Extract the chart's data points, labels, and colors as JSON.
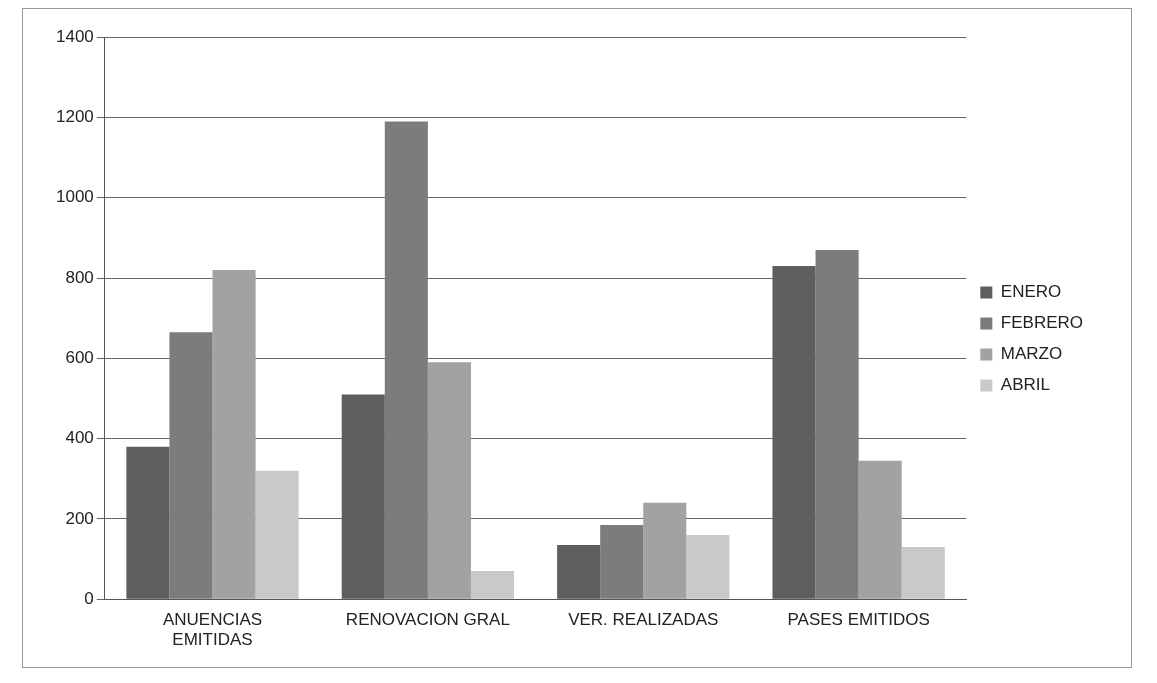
{
  "chart_data": {
    "type": "bar",
    "categories": [
      "ANUENCIAS EMITIDAS",
      "RENOVACION GRAL",
      "VER. REALIZADAS",
      "PASES EMITIDOS"
    ],
    "series": [
      {
        "name": "ENERO",
        "color": "#5e5e5e",
        "values": [
          380,
          510,
          135,
          830
        ]
      },
      {
        "name": "FEBRERO",
        "color": "#7c7c7c",
        "values": [
          665,
          1190,
          185,
          870
        ]
      },
      {
        "name": "MARZO",
        "color": "#a2a2a2",
        "values": [
          820,
          590,
          240,
          345
        ]
      },
      {
        "name": "ABRIL",
        "color": "#c9c9c9",
        "values": [
          320,
          70,
          160,
          130
        ]
      }
    ],
    "ylim": [
      0,
      1400
    ],
    "yticks": [
      0,
      200,
      400,
      600,
      800,
      1000,
      1200,
      1400
    ],
    "grid": "y",
    "legend": "right"
  }
}
